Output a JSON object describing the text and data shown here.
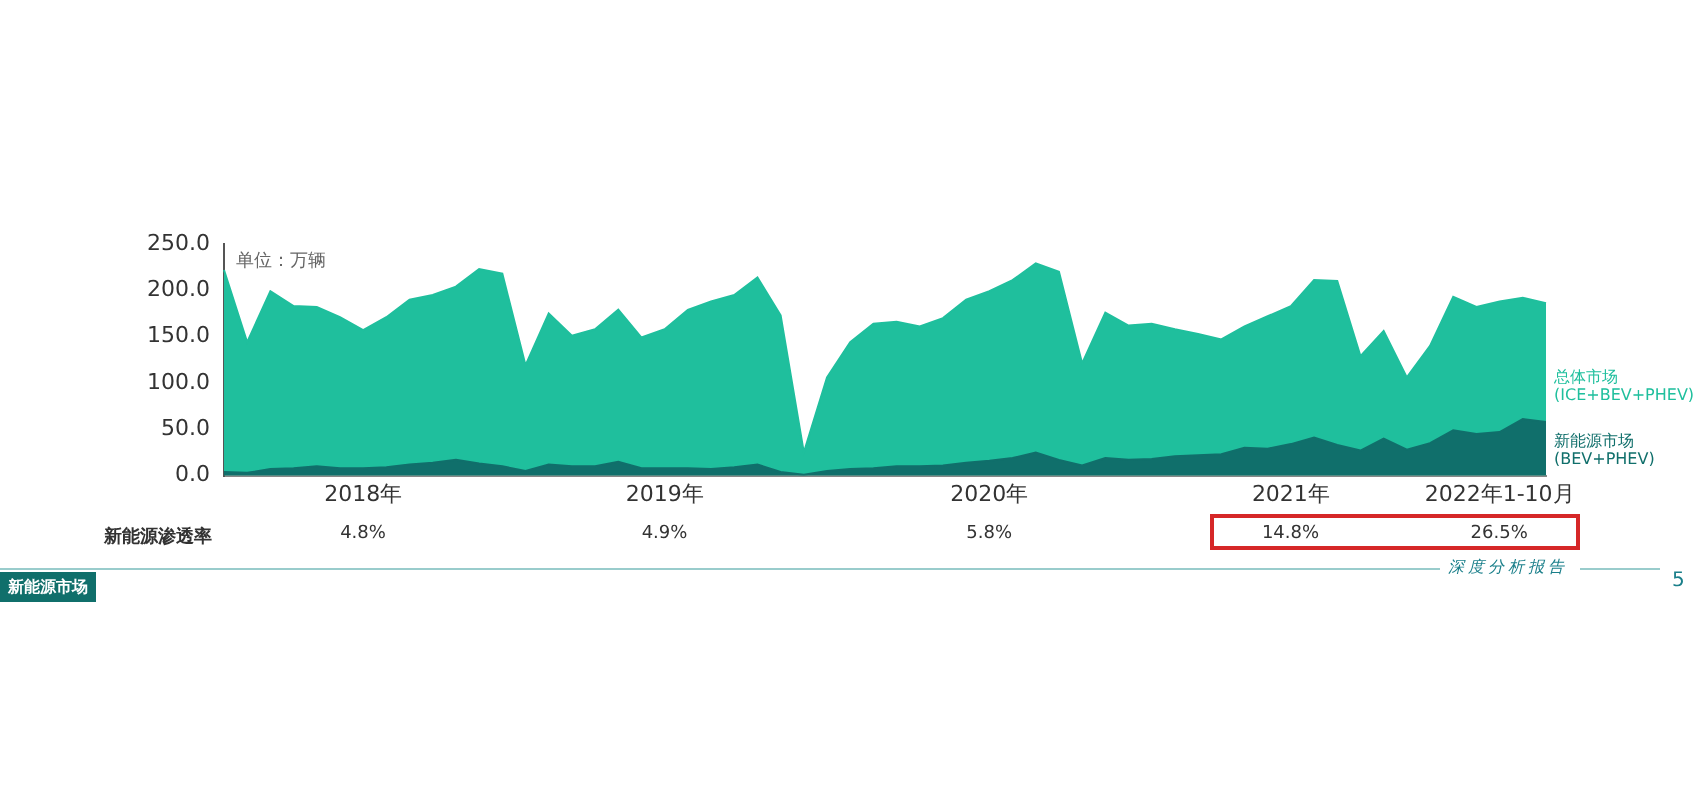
{
  "chart_data": {
    "type": "area",
    "categories": [
      null,
      null,
      null,
      null,
      null,
      null,
      "2018年",
      null,
      null,
      null,
      null,
      null,
      null,
      null,
      null,
      null,
      null,
      null,
      null,
      "2019年",
      null,
      null,
      null,
      null,
      null,
      null,
      null,
      null,
      null,
      null,
      null,
      null,
      null,
      "2020年",
      null,
      null,
      null,
      null,
      null,
      null,
      null,
      null,
      null,
      null,
      null,
      null,
      "2021年",
      null,
      null,
      null,
      null,
      null,
      null,
      null,
      null,
      "2022年1-10月",
      null,
      null
    ],
    "series": [
      {
        "name": "总体市场\n(ICE+BEV+PHEV)",
        "color": "#1fbf9d",
        "values": [
          222,
          144,
          199,
          183,
          182,
          171,
          157,
          171,
          190,
          195,
          204,
          223,
          218,
          119,
          175,
          151,
          158,
          179,
          149,
          158,
          179,
          188,
          195,
          214,
          173,
          25,
          106,
          144,
          164,
          166,
          161,
          170,
          190,
          199,
          211,
          229,
          220,
          121,
          176,
          162,
          164,
          158,
          153,
          147,
          161,
          172,
          183,
          211,
          210,
          129,
          156,
          106,
          140,
          193,
          182,
          188,
          192,
          186
        ]
      },
      {
        "name": "新能源市场\n(BEV+PHEV)",
        "color": "#106f6b",
        "values": [
          4,
          3,
          7,
          8,
          10,
          8,
          8,
          9,
          12,
          14,
          17,
          13,
          10,
          5,
          12,
          10,
          10,
          15,
          8,
          8,
          8,
          7,
          9,
          12,
          4,
          1,
          5,
          7,
          8,
          10,
          10,
          11,
          14,
          16,
          19,
          25,
          17,
          11,
          19,
          17,
          18,
          21,
          22,
          23,
          30,
          29,
          34,
          41,
          33,
          27,
          40,
          28,
          35,
          49,
          45,
          47,
          61,
          58
        ]
      }
    ],
    "ylim": [
      0,
      250
    ],
    "yticks": [
      {
        "value": 0,
        "label": "0.0"
      },
      {
        "value": 50,
        "label": "50.0"
      },
      {
        "value": 100,
        "label": "100.0"
      },
      {
        "value": 150,
        "label": "150.0"
      },
      {
        "value": 200,
        "label": "200.0"
      },
      {
        "value": 250,
        "label": "250.0"
      }
    ],
    "grid": false,
    "legend": "right",
    "annotations": [
      "单位：万辆",
      "新能源渗透率",
      "4.8%",
      "4.9%",
      "5.8%",
      "14.8%",
      "26.5%",
      "新能源市场",
      "深度分析报告",
      "5"
    ]
  }
}
